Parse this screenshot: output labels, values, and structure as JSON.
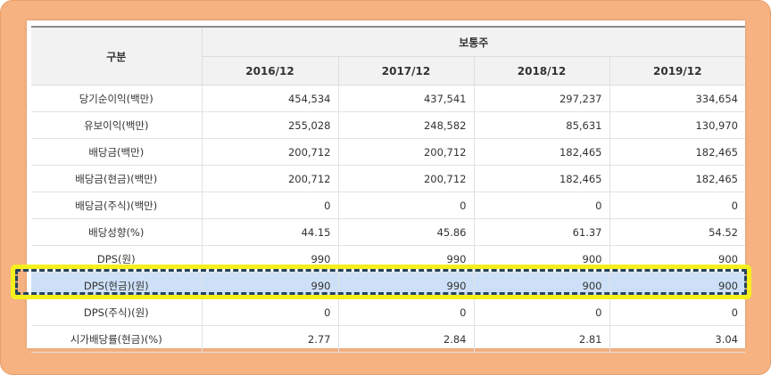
{
  "table": {
    "corner_header": "구분",
    "group_header": "보통주",
    "years": [
      "2016/12",
      "2017/12",
      "2018/12",
      "2019/12"
    ],
    "rows": [
      {
        "label": "당기순이익(백만)",
        "values": [
          "454,534",
          "437,541",
          "297,237",
          "334,654"
        ]
      },
      {
        "label": "유보이익(백만)",
        "values": [
          "255,028",
          "248,582",
          "85,631",
          "130,970"
        ]
      },
      {
        "label": "배당금(백만)",
        "values": [
          "200,712",
          "200,712",
          "182,465",
          "182,465"
        ]
      },
      {
        "label": "배당금(현금)(백만)",
        "values": [
          "200,712",
          "200,712",
          "182,465",
          "182,465"
        ]
      },
      {
        "label": "배당금(주식)(백만)",
        "values": [
          "0",
          "0",
          "0",
          "0"
        ]
      },
      {
        "label": "배당성향(%)",
        "values": [
          "44.15",
          "45.86",
          "61.37",
          "54.52"
        ]
      },
      {
        "label": "DPS(원)",
        "values": [
          "990",
          "990",
          "900",
          "900"
        ]
      },
      {
        "label": "DPS(현금)(원)",
        "values": [
          "990",
          "990",
          "900",
          "900"
        ]
      },
      {
        "label": "DPS(주식)(원)",
        "values": [
          "0",
          "0",
          "0",
          "0"
        ]
      },
      {
        "label": "시가배당률(현금)(%)",
        "values": [
          "2.77",
          "2.84",
          "2.81",
          "3.04"
        ]
      }
    ],
    "highlight_row": 7
  },
  "colors": {
    "frame": "#f6b281",
    "highlight_fill": "#cde0f7",
    "highlight_outer": "#f5ef1c",
    "highlight_dash": "#23445e"
  }
}
